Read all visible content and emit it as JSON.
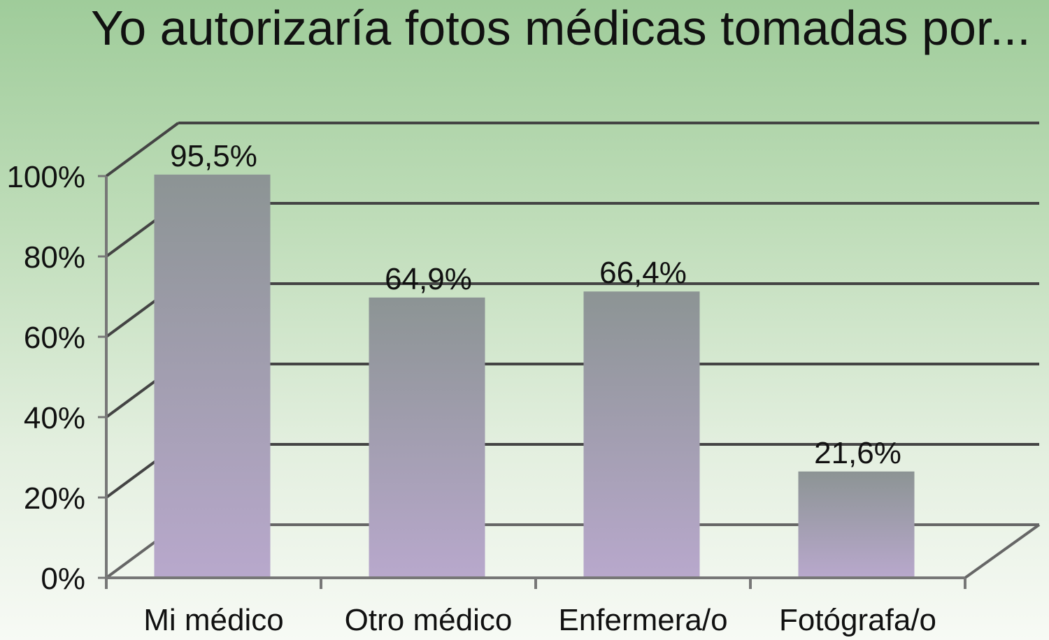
{
  "chart_data": {
    "type": "bar",
    "title": "Yo autorizaría fotos médicas tomadas por...",
    "categories": [
      "Mi médico",
      "Otro médico",
      "Enfermera/o",
      "Fotógrafa/o"
    ],
    "values": [
      95.5,
      64.9,
      66.4,
      21.6
    ],
    "data_labels": [
      "95,5%",
      "64,9%",
      "66,4%",
      "21,6%"
    ],
    "yticks": [
      "0%",
      "20%",
      "40%",
      "60%",
      "80%",
      "100%"
    ],
    "ylim": [
      0,
      100
    ],
    "grid": true,
    "style": "3d-floor",
    "colors": {
      "bar_top": "#8c9494",
      "bar_bottom": "#b8a8cc",
      "grid": "#444444"
    }
  }
}
